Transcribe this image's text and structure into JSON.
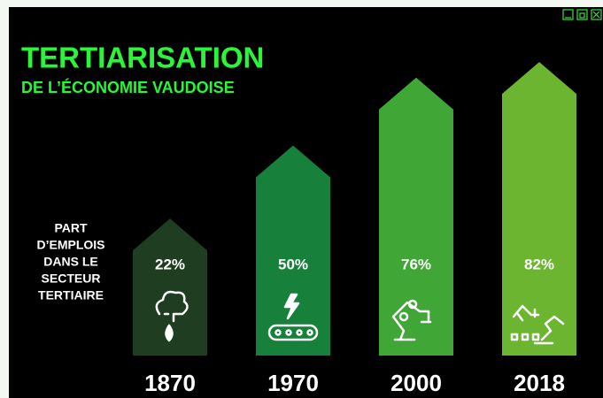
{
  "chart_data": {
    "type": "bar",
    "title": "TERTIARISATION",
    "subtitle": "DE L’ÉCONOMIE VAUDOISE",
    "y_label": [
      "PART",
      "D’EMPLOIS",
      "DANS LE",
      "SECTEUR",
      "TERTIAIRE"
    ],
    "categories": [
      "1870",
      "1970",
      "2000",
      "2018"
    ],
    "values": [
      22,
      50,
      76,
      82
    ],
    "value_labels": [
      "22%",
      "50%",
      "76%",
      "82%"
    ],
    "colors": [
      "#1f3d21",
      "#17803a",
      "#40a636",
      "#6cb530"
    ]
  }
}
